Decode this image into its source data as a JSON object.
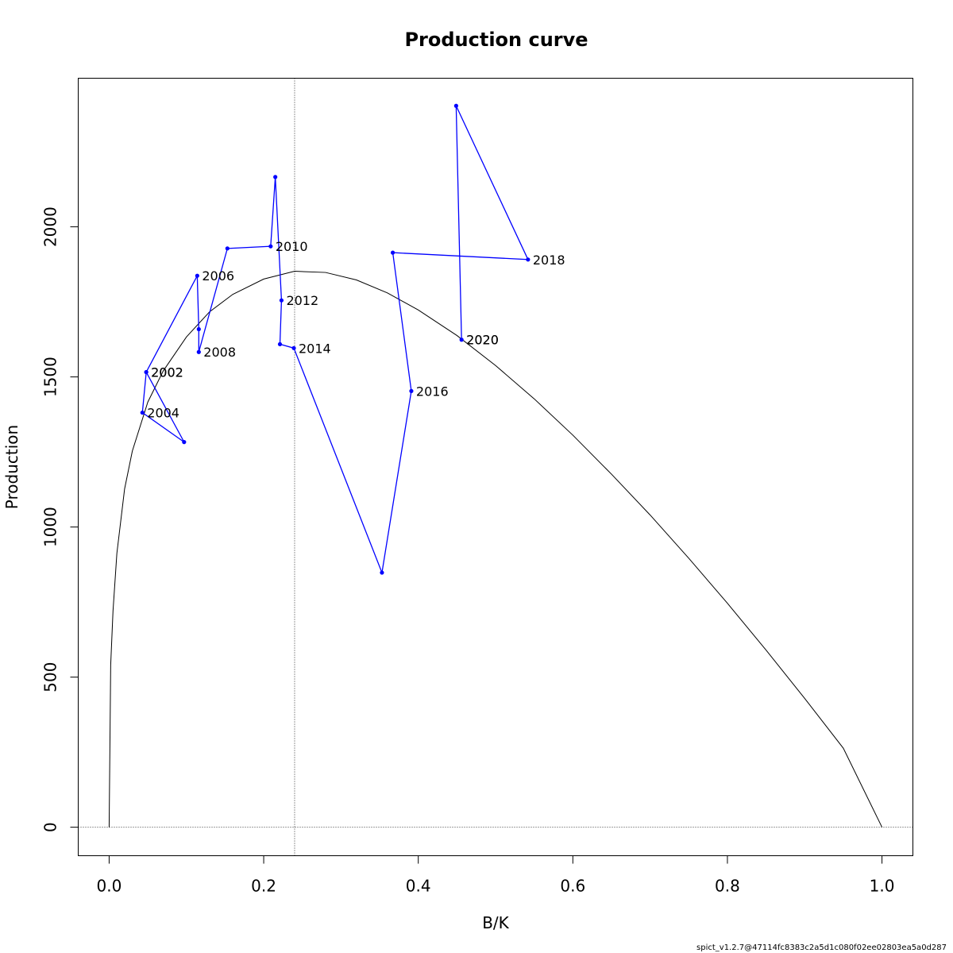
{
  "chart_data": {
    "type": "line",
    "title": "Production curve",
    "xlabel": "B/K",
    "ylabel": "Production",
    "xlim": [
      -0.04,
      1.04
    ],
    "ylim": [
      -95,
      2495
    ],
    "x_ticks": [
      0.0,
      0.2,
      0.4,
      0.6,
      0.8,
      1.0
    ],
    "x_tick_labels": [
      "0.0",
      "0.2",
      "0.4",
      "0.6",
      "0.8",
      "1.0"
    ],
    "y_ticks": [
      0,
      500,
      1000,
      1500,
      2000
    ],
    "y_tick_labels": [
      "0",
      "500",
      "1000",
      "1500",
      "2000"
    ],
    "grid": false,
    "reference_lines": {
      "vertical_x": 0.24,
      "horizontal_y": 0
    },
    "production_curve": {
      "color": "#000000",
      "x": [
        0,
        0.002,
        0.005,
        0.01,
        0.02,
        0.03,
        0.05,
        0.07,
        0.1,
        0.13,
        0.16,
        0.2,
        0.24,
        0.28,
        0.32,
        0.36,
        0.4,
        0.45,
        0.5,
        0.55,
        0.6,
        0.65,
        0.7,
        0.75,
        0.8,
        0.85,
        0.9,
        0.95,
        1.0
      ],
      "y": [
        0,
        540,
        720,
        912,
        1127,
        1253,
        1416,
        1520,
        1633,
        1717,
        1775,
        1826,
        1852,
        1848,
        1823,
        1780,
        1723,
        1638,
        1538,
        1427,
        1306,
        1176,
        1040,
        896,
        746,
        590,
        429,
        263,
        0
      ]
    },
    "series": [
      {
        "name": "",
        "color": "#0000ff",
        "x": [
          0.048,
          0.097,
          0.043,
          0.048,
          0.114,
          0.116,
          0.116,
          0.153,
          0.209,
          0.215,
          0.223,
          0.221,
          0.239,
          0.353,
          0.391,
          0.367,
          0.542,
          0.449,
          0.456
        ],
        "y": [
          1516,
          1283,
          1381,
          1516,
          1837,
          1659,
          1583,
          1928,
          1935,
          2166,
          1755,
          1609,
          1596,
          848,
          1453,
          1914,
          1891,
          2403,
          1624
        ]
      }
    ],
    "point_labels": [
      {
        "text": "2002",
        "x": 0.048,
        "y": 1516
      },
      {
        "text": "2002",
        "x": 0.048,
        "y": 1516
      },
      {
        "text": "2004",
        "x": 0.043,
        "y": 1381
      },
      {
        "text": "2006",
        "x": 0.114,
        "y": 1837
      },
      {
        "text": "2008",
        "x": 0.116,
        "y": 1583
      },
      {
        "text": "2010",
        "x": 0.209,
        "y": 1935
      },
      {
        "text": "2012",
        "x": 0.223,
        "y": 1755
      },
      {
        "text": "2014",
        "x": 0.239,
        "y": 1596
      },
      {
        "text": "2016",
        "x": 0.391,
        "y": 1453
      },
      {
        "text": "2018",
        "x": 0.542,
        "y": 1891
      },
      {
        "text": "2020",
        "x": 0.456,
        "y": 1624
      },
      {
        "text": "2020",
        "x": 0.456,
        "y": 1624
      }
    ]
  },
  "footer_text": "spict_v1.2.7@47114fc8383c2a5d1c080f02ee02803ea5a0d287"
}
